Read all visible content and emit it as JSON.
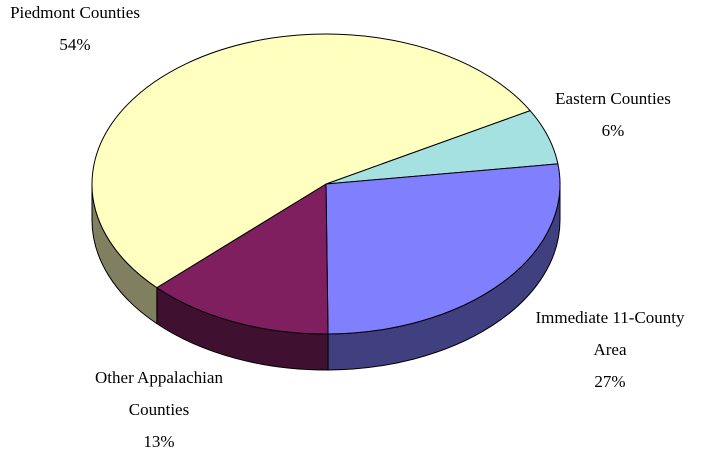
{
  "chart_data": {
    "type": "pie",
    "style": "3d",
    "title": "",
    "slices": [
      {
        "label_lines": [
          "Eastern Counties"
        ],
        "value": 6,
        "value_label": "6%",
        "color": "#a6e1e1"
      },
      {
        "label_lines": [
          "Immediate 11-County",
          "Area"
        ],
        "value": 27,
        "value_label": "27%",
        "color": "#8080ff"
      },
      {
        "label_lines": [
          "Other Appalachian",
          "Counties"
        ],
        "value": 13,
        "value_label": "13%",
        "color": "#7f1f5f"
      },
      {
        "label_lines": [
          "Piedmont Counties"
        ],
        "value": 54,
        "value_label": "54%",
        "color": "#ffffc0"
      }
    ]
  }
}
